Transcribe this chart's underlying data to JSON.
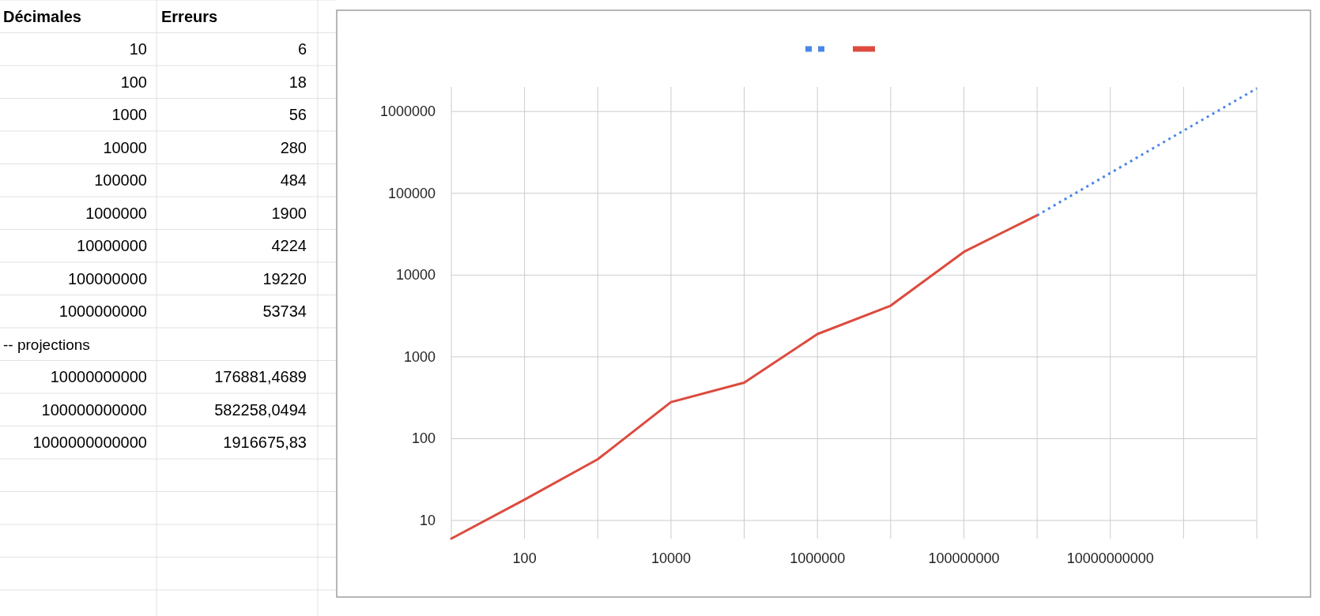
{
  "chart_data": [
    {
      "type": "other",
      "annotations": [
        "Décimales",
        "Erreurs",
        "10",
        "6",
        "100",
        "18",
        "1000",
        "56",
        "10000",
        "280",
        "100000",
        "484",
        "1000000",
        "1900",
        "10000000",
        "4224",
        "100000000",
        "19220",
        "1000000000",
        "53734",
        "-- projections",
        "10000000000",
        "176881,4689",
        "100000000000",
        "582258,0494",
        "1000000000000",
        "1916675,83"
      ]
    },
    {
      "type": "line",
      "x": [
        10,
        100,
        1000,
        10000,
        100000,
        1000000,
        10000000,
        100000000,
        1000000000,
        10000000000,
        100000000000,
        1000000000000
      ],
      "log": "xy",
      "xlim": [
        10,
        1000000000000
      ],
      "xticks": [
        {
          "value": 10,
          "label": null
        },
        100,
        {
          "value": 1000,
          "label": null
        },
        10000,
        {
          "value": 100000,
          "label": null
        },
        1000000,
        {
          "value": 10000000,
          "label": null
        },
        100000000,
        {
          "value": 1000000000,
          "label": null
        },
        10000000000,
        {
          "value": 100000000000,
          "label": null
        },
        {
          "value": 1000000000000,
          "label": null
        }
      ],
      "ylim": [
        6,
        2000000
      ],
      "yticks": [
        10,
        100,
        1000,
        10000,
        100000,
        1000000
      ],
      "grid": true,
      "series": [
        {
          "color": "#4a86e8",
          "line_style": "dotted",
          "values": [
            null,
            null,
            null,
            null,
            null,
            null,
            null,
            null,
            53734,
            176881.4689,
            582258.0494,
            1916675.83
          ]
        },
        {
          "color": "#dc4b3e",
          "line_style": "solid",
          "values": [
            6,
            18,
            56,
            280,
            484,
            1900,
            4224,
            19220,
            53734,
            null,
            null,
            null
          ]
        }
      ]
    }
  ]
}
